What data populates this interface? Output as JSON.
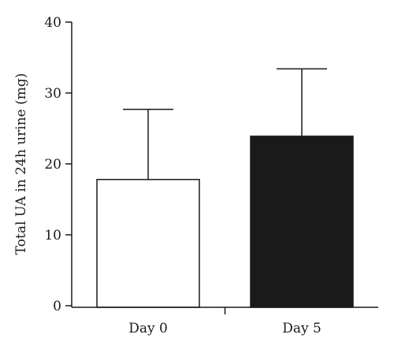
{
  "chart_data": {
    "type": "bar",
    "categories": [
      "Day 0",
      "Day 5"
    ],
    "values": [
      17.8,
      23.9
    ],
    "error_upper": [
      27.7,
      33.4
    ],
    "bar_colors": [
      "#ffffff",
      "#1a1a1a"
    ],
    "ylabel": "Total UA in 24h urine (mg)",
    "ylim": [
      0,
      40
    ],
    "yticks": [
      0,
      10,
      20,
      30,
      40
    ],
    "grid": false,
    "legend": "none"
  }
}
